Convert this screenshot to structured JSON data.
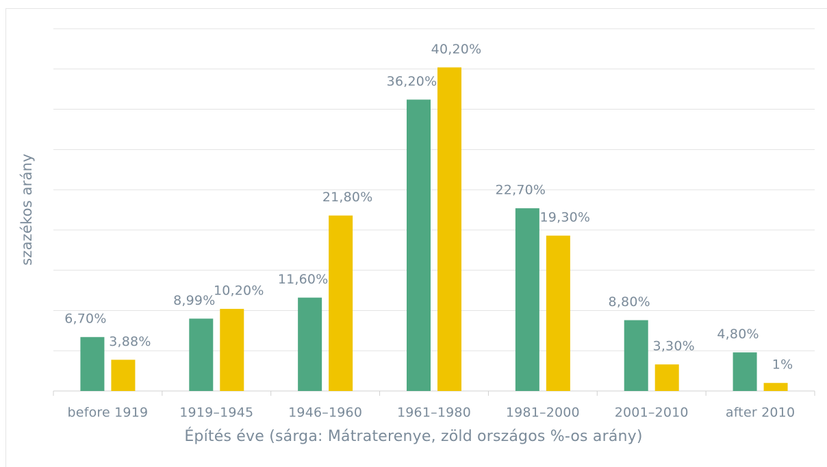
{
  "chart_data": {
    "type": "bar",
    "x_label": "Építés éve (sárga: Mátraterenye, zöld országos %-os arány)",
    "y_label": "szazékos arány",
    "categories": [
      "before 1919",
      "1919–1945",
      "1946–1960",
      "1961–1980",
      "1981–2000",
      "2001–2010",
      "after 2010"
    ],
    "series": [
      {
        "color": "#4fa882",
        "values": [
          6.7,
          8.99,
          11.6,
          36.2,
          22.7,
          8.8,
          4.8
        ],
        "value_labels": [
          "6,70%",
          "8,99%",
          "11,60%",
          "36,20%",
          "22,70%",
          "8,80%",
          "4,80%"
        ]
      },
      {
        "color": "#f0c400",
        "values": [
          3.88,
          10.2,
          21.8,
          40.2,
          19.3,
          3.3,
          1
        ],
        "value_labels": [
          "3,88%",
          "10,20%",
          "21,80%",
          "40,20%",
          "19,30%",
          "3,30%",
          "1%"
        ]
      }
    ],
    "ylim": [
      0,
      45
    ],
    "yticks": [
      0,
      5,
      10,
      15,
      20,
      25,
      30,
      35,
      40,
      45
    ],
    "grid": true
  }
}
